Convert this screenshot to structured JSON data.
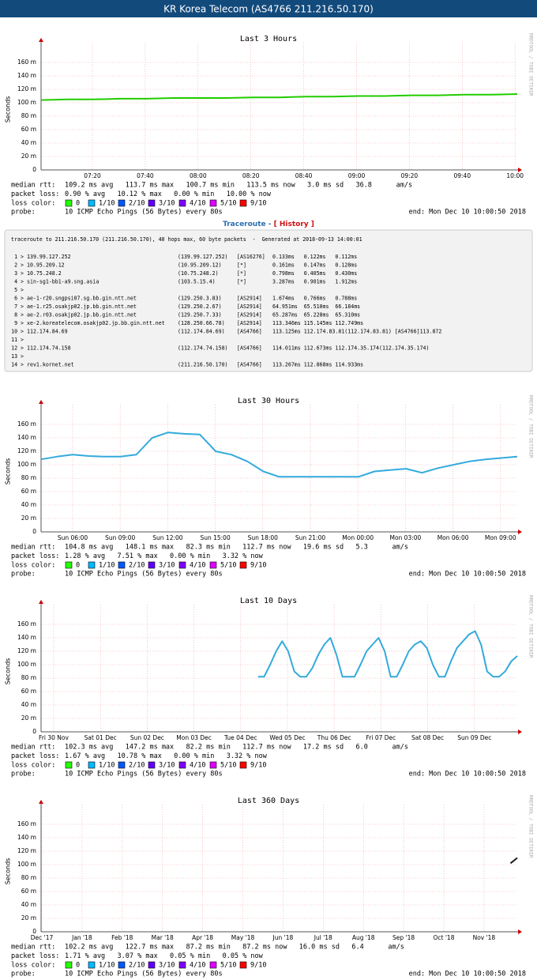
{
  "header": {
    "title": "KR Korea Telecom (AS4766 211.216.50.170)"
  },
  "footer": {
    "median_label": "median rtt:",
    "loss_label": "packet loss:",
    "loss_color_label": "loss color:",
    "probe_label": "probe:",
    "probe": "10 ICMP Echo Pings (56 Bytes) every 80s",
    "end": "end: Mon Dec 10 10:00:50 2018",
    "watermark": "RRDTOOL / TOBI OETIKER",
    "loss_legend": [
      {
        "name": "0",
        "color": "#26ff00"
      },
      {
        "name": "1/10",
        "color": "#00b8ff"
      },
      {
        "name": "2/10",
        "color": "#0059ff"
      },
      {
        "name": "3/10",
        "color": "#5e00ff"
      },
      {
        "name": "4/10",
        "color": "#7e00ff"
      },
      {
        "name": "5/10",
        "color": "#dd00ff"
      },
      {
        "name": "9/10",
        "color": "#ff0000"
      }
    ]
  },
  "traceroute": {
    "heading": "Traceroute",
    "separator": "-",
    "history_link": "[ History ]",
    "header": "traceroute to 211.216.50.170 (211.216.50.170), 40 hops max, 60 byte packets  -  Generated at 2018-09-13 14:00:01",
    "rows": [
      [
        "1 >",
        "139.99.127.252",
        "(139.99.127.252)",
        "[AS16276]",
        "0.133ms   0.122ms   0.112ms"
      ],
      [
        "2 >",
        "10.95.209.12",
        "(10.95.209.12)",
        "[*]",
        "0.161ms   0.147ms   0.128ms"
      ],
      [
        "3 >",
        "10.75.248.2",
        "(10.75.248.2)",
        "[*]",
        "0.798ms   0.405ms   0.430ms"
      ],
      [
        "4 >",
        "sin-sg1-bb1-a9.sng.asia",
        "(103.5.15.4)",
        "[*]",
        "3.287ms   0.901ms   1.912ms"
      ],
      [
        "5 >"
      ],
      [
        "6 >",
        "ae-1-r20.sngpsi07.sg.bb.gin.ntt.net",
        "(129.250.3.83)",
        "[AS2914]",
        "1.674ms   0.766ms   0.788ms"
      ],
      [
        "7 >",
        "ae-1.r25.osakjp02.jp.bb.gin.ntt.net",
        "(129.250.2.67)",
        "[AS2914]",
        "64.951ms  65.510ms  66.184ms"
      ],
      [
        "8 >",
        "ae-2.r03.osakjp02.jp.bb.gin.ntt.net",
        "(129.250.7.33)",
        "[AS2914]",
        "65.287ms  65.228ms  65.310ms"
      ],
      [
        "9 >",
        "xe-2.koreatelecom.osakjp02.jp.bb.gin.ntt.net",
        "(128.250.66.78)",
        "[AS2914]",
        "113.346ms 115.145ms 112.749ms"
      ],
      [
        "10 >",
        "112.174.84.69",
        "(112.174.84.69)",
        "[AS4766]",
        "113.125ms 112.174.83.81(112.174.83.81) [AS4766]113.872"
      ],
      [
        "11 >"
      ],
      [
        "12 >",
        "112.174.74.158",
        "(112.174.74.158)",
        "[AS4766]",
        "114.011ms 112.673ms 112.174.35.174(112.174.35.174)"
      ],
      [
        "13 >"
      ],
      [
        "14 >",
        "rev1.kornet.net",
        "(211.216.50.170)",
        "[AS4766]",
        "113.267ms 112.868ms 114.933ms"
      ]
    ]
  },
  "chart_data": [
    {
      "type": "line",
      "title": "Last 3 Hours",
      "ylabel": "Seconds",
      "color": "#22cc00",
      "ylim": [
        0,
        0.18
      ],
      "yticks": [
        0,
        {
          "value": 0.02,
          "label": "20 m"
        },
        {
          "value": 0.04,
          "label": "40 m"
        },
        {
          "value": 0.06,
          "label": "60 m"
        },
        {
          "value": 0.08,
          "label": "80 m"
        },
        {
          "value": 0.1,
          "label": "100 m"
        },
        {
          "value": 0.12,
          "label": "120 m"
        },
        {
          "value": 0.14,
          "label": "140 m"
        },
        {
          "value": 0.16,
          "label": "160 m"
        }
      ],
      "xticks": [
        "07:20",
        "07:40",
        "08:00",
        "08:20",
        "08:40",
        "09:00",
        "09:20",
        "09:40",
        "10:00"
      ],
      "values": [
        0.104,
        0.105,
        0.105,
        0.106,
        0.106,
        0.107,
        0.107,
        0.107,
        0.108,
        0.108,
        0.109,
        0.109,
        0.11,
        0.11,
        0.111,
        0.111,
        0.112,
        0.112,
        0.113
      ],
      "median_rtt": "109.2 ms avg   113.7 ms max   100.7 ms min   113.5 ms now   3.0 ms sd   36.8      am/s",
      "packet_loss": "0.90 % avg   10.12 % max   0.00 % min   10.00 % now"
    },
    {
      "type": "line",
      "title": "Last 30 Hours",
      "ylabel": "Seconds",
      "color": "#33aadd",
      "ylim": [
        0,
        0.18
      ],
      "yticks": [
        0,
        {
          "value": 0.02,
          "label": "20 m"
        },
        {
          "value": 0.04,
          "label": "40 m"
        },
        {
          "value": 0.06,
          "label": "60 m"
        },
        {
          "value": 0.08,
          "label": "80 m"
        },
        {
          "value": 0.1,
          "label": "100 m"
        },
        {
          "value": 0.12,
          "label": "120 m"
        },
        {
          "value": 0.14,
          "label": "140 m"
        },
        {
          "value": 0.16,
          "label": "160 m"
        }
      ],
      "xticks": [
        "Sun 06:00",
        "Sun 09:00",
        "Sun 12:00",
        "Sun 15:00",
        "Sun 18:00",
        "Sun 21:00",
        "Mon 00:00",
        "Mon 03:00",
        "Mon 06:00",
        "Mon 09:00"
      ],
      "values": [
        0.108,
        0.112,
        0.115,
        0.113,
        0.112,
        0.112,
        0.115,
        0.14,
        0.148,
        0.146,
        0.145,
        0.12,
        0.115,
        0.105,
        0.09,
        0.082,
        0.082,
        0.082,
        0.082,
        0.082,
        0.082,
        0.09,
        0.092,
        0.094,
        0.088,
        0.095,
        0.1,
        0.105,
        0.108,
        0.11,
        0.112
      ],
      "median_rtt": "104.8 ms avg   148.1 ms max   82.3 ms min   112.7 ms now   19.6 ms sd   5.3      am/s",
      "packet_loss": "1.28 % avg   7.51 % max   0.00 % min   3.32 % now"
    },
    {
      "type": "line",
      "title": "Last 10 Days",
      "ylabel": "Seconds",
      "color": "#33aadd",
      "ylim": [
        0,
        0.18
      ],
      "yticks": [
        0,
        {
          "value": 0.02,
          "label": "20 m"
        },
        {
          "value": 0.04,
          "label": "40 m"
        },
        {
          "value": 0.06,
          "label": "60 m"
        },
        {
          "value": 0.08,
          "label": "80 m"
        },
        {
          "value": 0.1,
          "label": "100 m"
        },
        {
          "value": 0.12,
          "label": "120 m"
        },
        {
          "value": 0.14,
          "label": "140 m"
        },
        {
          "value": 0.16,
          "label": "160 m"
        }
      ],
      "xticks": [
        "Fri 30 Nov",
        "Sat 01 Dec",
        "Sun 02 Dec",
        "Mon 03 Dec",
        "Tue 04 Dec",
        "Wed 05 Dec",
        "Thu 06 Dec",
        "Fri 07 Dec",
        "Sat 08 Dec",
        "Sun 09 Dec"
      ],
      "values": [
        null,
        null,
        null,
        null,
        null,
        null,
        null,
        null,
        null,
        null,
        null,
        null,
        null,
        null,
        null,
        null,
        null,
        null,
        null,
        null,
        null,
        null,
        null,
        null,
        null,
        null,
        null,
        null,
        null,
        null,
        null,
        null,
        null,
        null,
        null,
        null,
        0.082,
        0.082,
        0.1,
        0.12,
        0.135,
        0.12,
        0.09,
        0.082,
        0.082,
        0.095,
        0.115,
        0.13,
        0.14,
        0.115,
        0.082,
        0.082,
        0.082,
        0.1,
        0.12,
        0.13,
        0.14,
        0.12,
        0.082,
        0.082,
        0.1,
        0.12,
        0.13,
        0.135,
        0.125,
        0.1,
        0.082,
        0.082,
        0.105,
        0.125,
        0.135,
        0.145,
        0.15,
        0.13,
        0.09,
        0.082,
        0.082,
        0.09,
        0.105,
        0.113
      ],
      "median_rtt": "102.3 ms avg   147.2 ms max   82.2 ms min   112.7 ms now   17.2 ms sd   6.0      am/s",
      "packet_loss": "1.67 % avg   10.78 % max   0.00 % min   3.32 % now"
    },
    {
      "type": "line",
      "title": "Last 360 Days",
      "ylabel": "Seconds",
      "color": "#1a1a1a",
      "ylim": [
        0,
        0.18
      ],
      "yticks": [
        0,
        {
          "value": 0.02,
          "label": "20 m"
        },
        {
          "value": 0.04,
          "label": "40 m"
        },
        {
          "value": 0.06,
          "label": "60 m"
        },
        {
          "value": 0.08,
          "label": "80 m"
        },
        {
          "value": 0.1,
          "label": "100 m"
        },
        {
          "value": 0.12,
          "label": "120 m"
        },
        {
          "value": 0.14,
          "label": "140 m"
        },
        {
          "value": 0.16,
          "label": "160 m"
        }
      ],
      "xticks": [
        "Dec '17",
        "Jan '18",
        "Feb '18",
        "Mar '18",
        "Apr '18",
        "May '18",
        "Jun '18",
        "Jul '18",
        "Aug '18",
        "Sep '18",
        "Oct '18",
        "Nov '18"
      ],
      "values": [
        null,
        null,
        null,
        null,
        null,
        null,
        null,
        null,
        null,
        null,
        null,
        null,
        null,
        null,
        null,
        null,
        null,
        null,
        null,
        null,
        null,
        null,
        null,
        null,
        null,
        null,
        null,
        null,
        null,
        null,
        null,
        null,
        null,
        null,
        null,
        null,
        null,
        null,
        null,
        null,
        null,
        null,
        null,
        null,
        null,
        null,
        null,
        null,
        null,
        null,
        null,
        null,
        null,
        null,
        null,
        null,
        null,
        null,
        null,
        null,
        null,
        null,
        null,
        null,
        null,
        null,
        null,
        null,
        null,
        null,
        0.102,
        0.11
      ],
      "median_rtt": "102.2 ms avg   122.7 ms max   87.2 ms min   87.2 ms now   16.0 ms sd   6.4      am/s",
      "packet_loss": "1.71 % avg   3.07 % max   0.05 % min   0.05 % now"
    }
  ]
}
